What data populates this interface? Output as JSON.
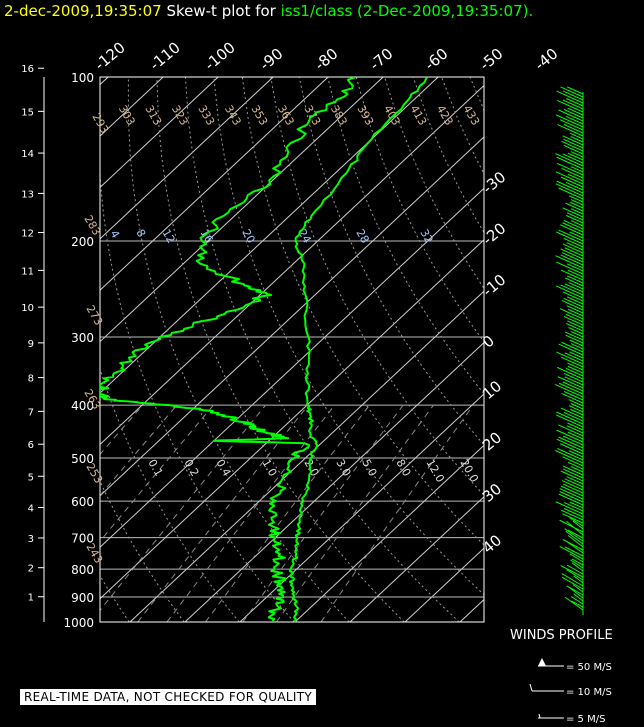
{
  "title": {
    "time": "2-dec-2009,19:35:07",
    "mid": "Skew-t plot for",
    "source": "iss1/class (2-Dec-2009,19:35:07)",
    "end": "."
  },
  "winds_label": "WINDS PROFILE",
  "wind_legend": [
    "= 50 M/S",
    "= 10 M/S",
    "= 5 M/S"
  ],
  "notice": "REAL-TIME DATA, NOT CHECKED FOR QUALITY",
  "colors": {
    "profile": "#00ff00",
    "title_time": "#ffff00",
    "grid": "#ffffff",
    "theta": "#d8b890",
    "mixing": "#9ec8ff"
  },
  "chart_data": {
    "type": "line",
    "pressure_levels": [
      100,
      200,
      300,
      400,
      500,
      600,
      700,
      800,
      900,
      1000
    ],
    "height_km_ticks": [
      1,
      2,
      3,
      4,
      5,
      6,
      7,
      8,
      9,
      10,
      11,
      12,
      13,
      14,
      15,
      16
    ],
    "temperature_ticks_top": [
      -120,
      -110,
      -100,
      -90,
      -80,
      -70,
      -60,
      -50,
      -40
    ],
    "temperature_ticks_right": [
      -30,
      -20,
      -10,
      0,
      10,
      20,
      30,
      40
    ],
    "dry_adiabat_labels": [
      "293",
      "303",
      "313",
      "323",
      "333",
      "343",
      "353",
      "363",
      "373",
      "383",
      "393",
      "403",
      "413",
      "423",
      "433",
      "283",
      "273",
      "263",
      "253",
      "243"
    ],
    "mixing_ratio_top_labels": [
      "4",
      "8",
      "12",
      "16",
      "20",
      "24",
      "28",
      "32"
    ],
    "mixing_ratio_mid_labels": [
      "0.1",
      "0.2",
      "0.4",
      "1.0",
      "2.0",
      "3.0",
      "5.0",
      "8.0",
      "12.0",
      "20.0"
    ],
    "series": [
      {
        "name": "temperature",
        "points": [
          [
            1000,
            20
          ],
          [
            950,
            18
          ],
          [
            900,
            15
          ],
          [
            850,
            12
          ],
          [
            800,
            9
          ],
          [
            750,
            7
          ],
          [
            700,
            4
          ],
          [
            650,
            1
          ],
          [
            600,
            -2
          ],
          [
            550,
            -5
          ],
          [
            500,
            -9
          ],
          [
            470,
            -11
          ],
          [
            450,
            -14
          ],
          [
            420,
            -17
          ],
          [
            400,
            -20
          ],
          [
            350,
            -26
          ],
          [
            300,
            -33
          ],
          [
            250,
            -42
          ],
          [
            220,
            -48
          ],
          [
            200,
            -54
          ],
          [
            180,
            -56
          ],
          [
            150,
            -58
          ],
          [
            130,
            -60
          ],
          [
            110,
            -61
          ],
          [
            100,
            -62
          ]
        ]
      },
      {
        "name": "dewpoint",
        "points": [
          [
            1000,
            16
          ],
          [
            950,
            14
          ],
          [
            900,
            13
          ],
          [
            850,
            10
          ],
          [
            800,
            6
          ],
          [
            750,
            4
          ],
          [
            700,
            0
          ],
          [
            650,
            -4
          ],
          [
            600,
            -7
          ],
          [
            550,
            -10
          ],
          [
            500,
            -12
          ],
          [
            470,
            -13
          ],
          [
            465,
            -30
          ],
          [
            460,
            -17
          ],
          [
            450,
            -22
          ],
          [
            440,
            -25
          ],
          [
            430,
            -28
          ],
          [
            420,
            -32
          ],
          [
            410,
            -36
          ],
          [
            400,
            -45
          ],
          [
            390,
            -58
          ],
          [
            380,
            -60
          ],
          [
            360,
            -61
          ],
          [
            340,
            -61
          ],
          [
            320,
            -62
          ],
          [
            300,
            -60
          ],
          [
            280,
            -55
          ],
          [
            260,
            -50
          ],
          [
            250,
            -49
          ],
          [
            240,
            -55
          ],
          [
            220,
            -67
          ],
          [
            200,
            -71
          ],
          [
            180,
            -72
          ],
          [
            160,
            -70
          ],
          [
            140,
            -72
          ],
          [
            120,
            -75
          ],
          [
            110,
            -74
          ],
          [
            100,
            -75
          ]
        ]
      }
    ],
    "xlabel": "",
    "ylabel": ""
  }
}
